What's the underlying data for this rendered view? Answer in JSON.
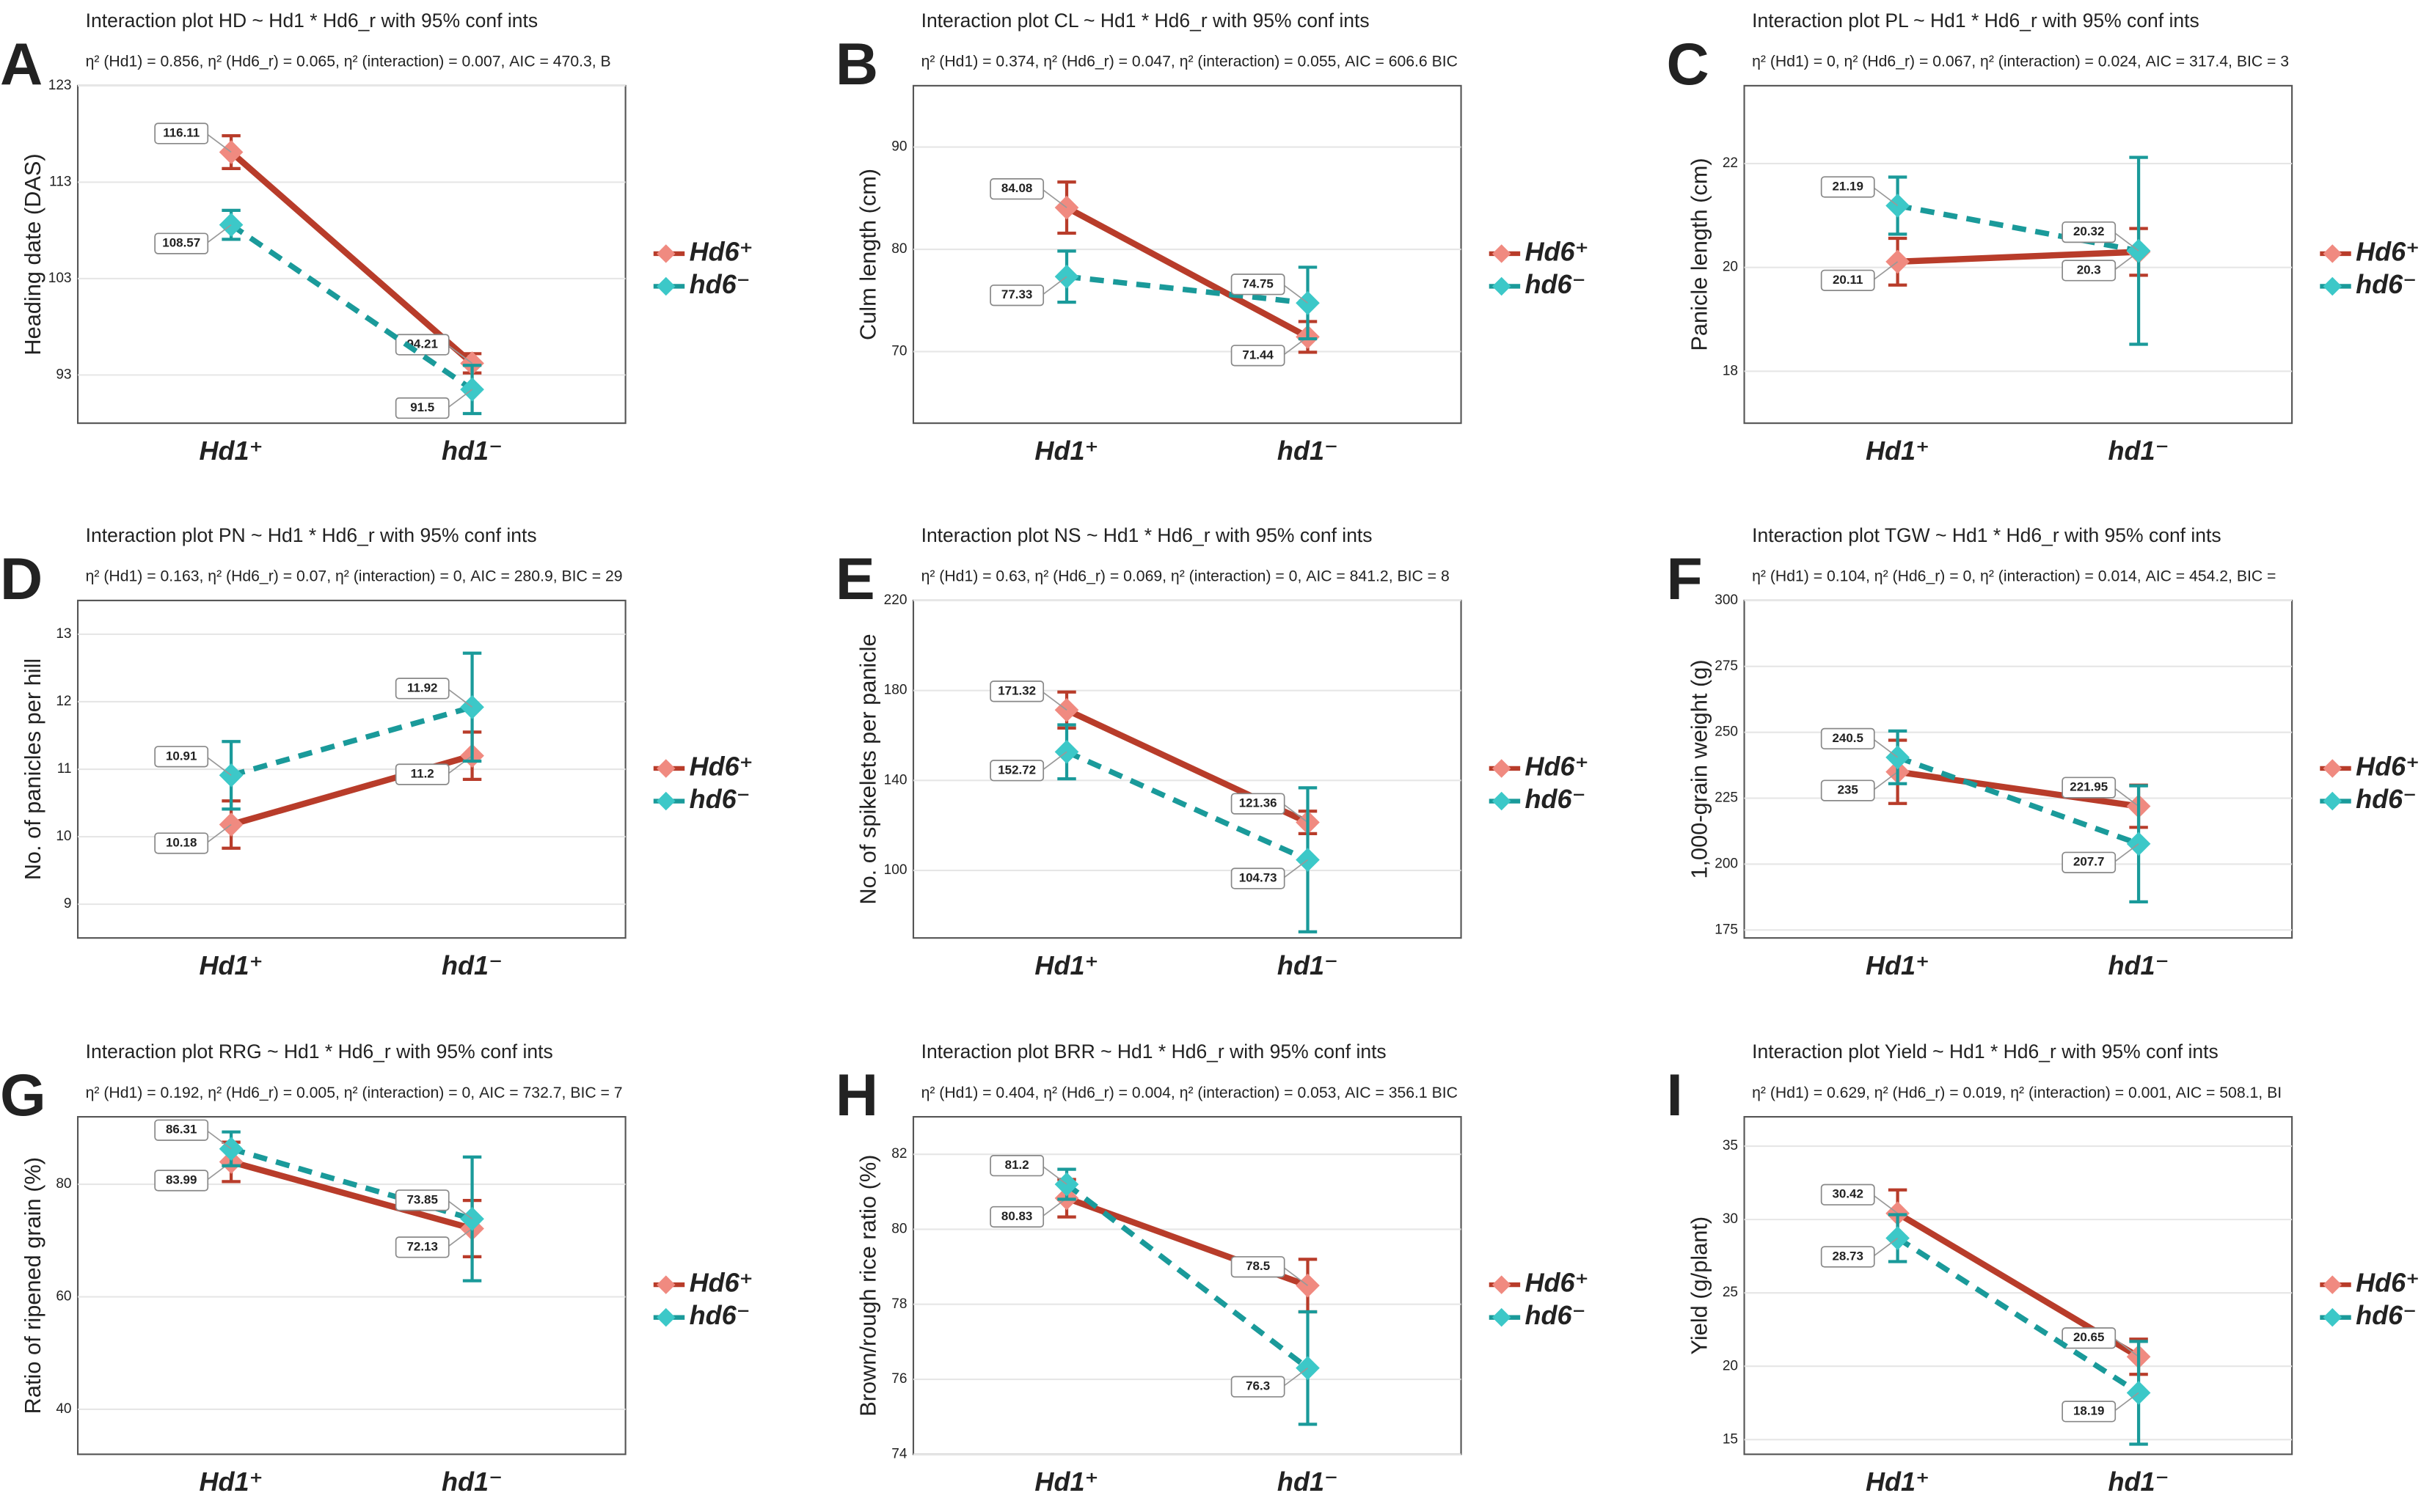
{
  "chart_data": [
    {
      "type": "line",
      "label": "A",
      "title": "Interaction plot  HD ~ Hd1 * Hd6_r with 95% conf ints",
      "subtitle": "η² (Hd1) = 0.856, η² (Hd6_r) = 0.065, η² (interaction) = 0.007, AIC = 470.3, B",
      "ylabel": "Heading date (DAS)",
      "categories": [
        "Hd1⁺",
        "hd1⁻"
      ],
      "ylim": [
        88,
        123
      ],
      "yticks": [
        93,
        103,
        113,
        123
      ],
      "grid": true,
      "series": [
        {
          "name": "Hd6⁺",
          "color": "#b83c2a",
          "marker_color": "#f08a80",
          "values": [
            116.11,
            94.21
          ],
          "errors": [
            1.7,
            1
          ]
        },
        {
          "name": "hd6⁻",
          "color": "#1a9a9a",
          "marker_color": "#3cc8c8",
          "values": [
            108.57,
            91.5
          ],
          "errors": [
            1.5,
            2.5
          ]
        }
      ]
    },
    {
      "type": "line",
      "label": "B",
      "title": "Interaction plot  CL ~ Hd1 * Hd6_r with 95% conf ints",
      "subtitle": "η² (Hd1) = 0.374, η² (Hd6_r) = 0.047, η² (interaction) = 0.055, AIC = 606.6  BIC",
      "ylabel": "Culm length (cm)",
      "categories": [
        "Hd1⁺",
        "hd1⁻"
      ],
      "ylim": [
        63,
        96
      ],
      "yticks": [
        70,
        80,
        90
      ],
      "grid": true,
      "series": [
        {
          "name": "Hd6⁺",
          "color": "#b83c2a",
          "marker_color": "#f08a80",
          "values": [
            84.08,
            71.44
          ],
          "errors": [
            2.5,
            1.5
          ]
        },
        {
          "name": "hd6⁻",
          "color": "#1a9a9a",
          "marker_color": "#3cc8c8",
          "values": [
            77.33,
            74.75
          ],
          "errors": [
            2.5,
            3.5
          ]
        }
      ]
    },
    {
      "type": "line",
      "label": "C",
      "title": "Interaction plot  PL ~ Hd1 * Hd6_r with 95% conf ints",
      "subtitle": "η² (Hd1) = 0, η² (Hd6_r) = 0.067, η² (interaction) = 0.024, AIC = 317.4, BIC = 3",
      "ylabel": "Panicle length (cm)",
      "categories": [
        "Hd1⁺",
        "hd1⁻"
      ],
      "ylim": [
        17,
        23.5
      ],
      "yticks": [
        18,
        20,
        22
      ],
      "grid": true,
      "series": [
        {
          "name": "Hd6⁺",
          "color": "#b83c2a",
          "marker_color": "#f08a80",
          "values": [
            20.11,
            20.3
          ],
          "errors": [
            0.45,
            0.45
          ]
        },
        {
          "name": "hd6⁻",
          "color": "#1a9a9a",
          "marker_color": "#3cc8c8",
          "values": [
            21.19,
            20.32
          ],
          "errors": [
            0.55,
            1.8
          ]
        }
      ]
    },
    {
      "type": "line",
      "label": "D",
      "title": "Interaction plot  PN ~ Hd1 * Hd6_r with 95% conf ints",
      "subtitle": "η² (Hd1) = 0.163, η² (Hd6_r) = 0.07, η² (interaction) = 0, AIC = 280.9, BIC = 29",
      "ylabel": "No. of panicles per hill",
      "categories": [
        "Hd1⁺",
        "hd1⁻"
      ],
      "ylim": [
        8.5,
        13.5
      ],
      "yticks": [
        9,
        10,
        11,
        12,
        13
      ],
      "grid": true,
      "series": [
        {
          "name": "Hd6⁺",
          "color": "#b83c2a",
          "marker_color": "#f08a80",
          "values": [
            10.18,
            11.2
          ],
          "errors": [
            0.35,
            0.35
          ]
        },
        {
          "name": "hd6⁻",
          "color": "#1a9a9a",
          "marker_color": "#3cc8c8",
          "values": [
            10.91,
            11.92
          ],
          "errors": [
            0.5,
            0.8
          ]
        }
      ]
    },
    {
      "type": "line",
      "label": "E",
      "title": "Interaction plot  NS ~ Hd1 * Hd6_r with 95% conf ints",
      "subtitle": "η² (Hd1) = 0.63, η² (Hd6_r) = 0.069, η² (interaction) = 0, AIC = 841.2, BIC = 8",
      "ylabel": "No. of spikelets per panicle",
      "categories": [
        "Hd1⁺",
        "hd1⁻"
      ],
      "ylim": [
        70,
        220
      ],
      "yticks": [
        100,
        140,
        180,
        220
      ],
      "grid": true,
      "series": [
        {
          "name": "Hd6⁺",
          "color": "#b83c2a",
          "marker_color": "#f08a80",
          "values": [
            171.32,
            121.36
          ],
          "errors": [
            8,
            5
          ]
        },
        {
          "name": "hd6⁻",
          "color": "#1a9a9a",
          "marker_color": "#3cc8c8",
          "values": [
            152.72,
            104.73
          ],
          "errors": [
            12,
            32
          ]
        }
      ]
    },
    {
      "type": "line",
      "label": "F",
      "title": "Interaction plot  TGW ~ Hd1 * Hd6_r with 95% conf ints",
      "subtitle": "η² (Hd1) = 0.104, η² (Hd6_r) = 0, η² (interaction) = 0.014, AIC = 454.2, BIC =",
      "ylabel": "1,000-grain weight (g)",
      "categories": [
        "Hd1⁺",
        "hd1⁻"
      ],
      "ylim": [
        172,
        300
      ],
      "yticks": [
        175,
        200,
        225,
        250,
        275,
        300
      ],
      "grid": true,
      "series": [
        {
          "name": "Hd6⁺",
          "color": "#b83c2a",
          "marker_color": "#f08a80",
          "values": [
            235,
            221.95
          ],
          "errors": [
            12,
            8
          ]
        },
        {
          "name": "hd6⁻",
          "color": "#1a9a9a",
          "marker_color": "#3cc8c8",
          "values": [
            240.5,
            207.7
          ],
          "errors": [
            10,
            22
          ]
        }
      ]
    },
    {
      "type": "line",
      "label": "G",
      "title": "Interaction plot  RRG ~ Hd1 * Hd6_r with 95% conf ints",
      "subtitle": "η² (Hd1) = 0.192, η² (Hd6_r) = 0.005, η² (interaction) = 0, AIC = 732.7, BIC = 7",
      "ylabel": "Ratio of ripened grain (%)",
      "categories": [
        "Hd1⁺",
        "hd1⁻"
      ],
      "ylim": [
        32,
        92
      ],
      "yticks": [
        40,
        60,
        80
      ],
      "grid": true,
      "series": [
        {
          "name": "Hd6⁺",
          "color": "#b83c2a",
          "marker_color": "#f08a80",
          "values": [
            83.99,
            72.13
          ],
          "errors": [
            3.5,
            5
          ]
        },
        {
          "name": "hd6⁻",
          "color": "#1a9a9a",
          "marker_color": "#3cc8c8",
          "values": [
            86.31,
            73.85
          ],
          "errors": [
            3,
            11
          ]
        }
      ]
    },
    {
      "type": "line",
      "label": "H",
      "title": "Interaction plot  BRR ~ Hd1 * Hd6_r with 95% conf ints",
      "subtitle": "η² (Hd1) = 0.404, η² (Hd6_r) = 0.004, η² (interaction) = 0.053, AIC = 356.1  BIC",
      "ylabel": "Brown/rough rice ratio (%)",
      "categories": [
        "Hd1⁺",
        "hd1⁻"
      ],
      "ylim": [
        74,
        83
      ],
      "yticks": [
        74,
        76,
        78,
        80,
        82
      ],
      "grid": true,
      "series": [
        {
          "name": "Hd6⁺",
          "color": "#b83c2a",
          "marker_color": "#f08a80",
          "values": [
            80.83,
            78.5
          ],
          "errors": [
            0.5,
            0.7
          ]
        },
        {
          "name": "hd6⁻",
          "color": "#1a9a9a",
          "marker_color": "#3cc8c8",
          "values": [
            81.2,
            76.3
          ],
          "errors": [
            0.4,
            1.5
          ]
        }
      ]
    },
    {
      "type": "line",
      "label": "I",
      "title": "Interaction plot  Yield ~ Hd1 * Hd6_r with 95% conf ints",
      "subtitle": "η² (Hd1) = 0.629, η² (Hd6_r) = 0.019, η² (interaction) = 0.001, AIC = 508.1, BI",
      "ylabel": "Yield (g/plant)",
      "categories": [
        "Hd1⁺",
        "hd1⁻"
      ],
      "ylim": [
        14,
        37
      ],
      "yticks": [
        15,
        20,
        25,
        30,
        35
      ],
      "grid": true,
      "series": [
        {
          "name": "Hd6⁺",
          "color": "#b83c2a",
          "marker_color": "#f08a80",
          "values": [
            30.42,
            20.65
          ],
          "errors": [
            1.6,
            1.2
          ]
        },
        {
          "name": "hd6⁻",
          "color": "#1a9a9a",
          "marker_color": "#3cc8c8",
          "values": [
            28.73,
            18.19
          ],
          "errors": [
            1.6,
            3.5
          ]
        }
      ]
    }
  ]
}
